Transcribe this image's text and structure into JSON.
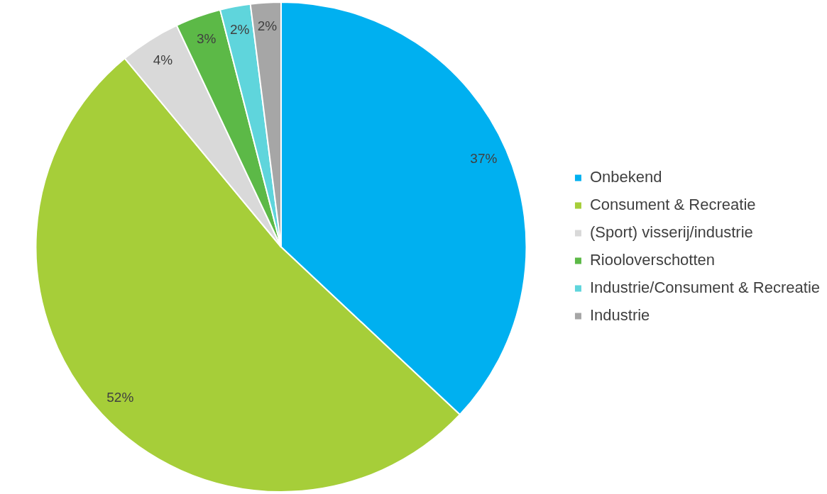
{
  "chart_data": {
    "type": "pie",
    "categories": [
      "Onbekend",
      "Consument & Recreatie",
      "(Sport) visserij/industrie",
      "Riooloverschotten",
      "Industrie/Consument & Recreatie",
      "Industrie"
    ],
    "values": [
      37,
      52,
      4,
      3,
      2,
      2
    ],
    "colors": [
      "#00b0f0",
      "#a6ce39",
      "#d9d9d9",
      "#5cb947",
      "#5fd5dc",
      "#a6a6a6"
    ],
    "value_labels": [
      "37%",
      "52%",
      "4%",
      "3%",
      "2%",
      "2%"
    ],
    "legend": "right"
  }
}
